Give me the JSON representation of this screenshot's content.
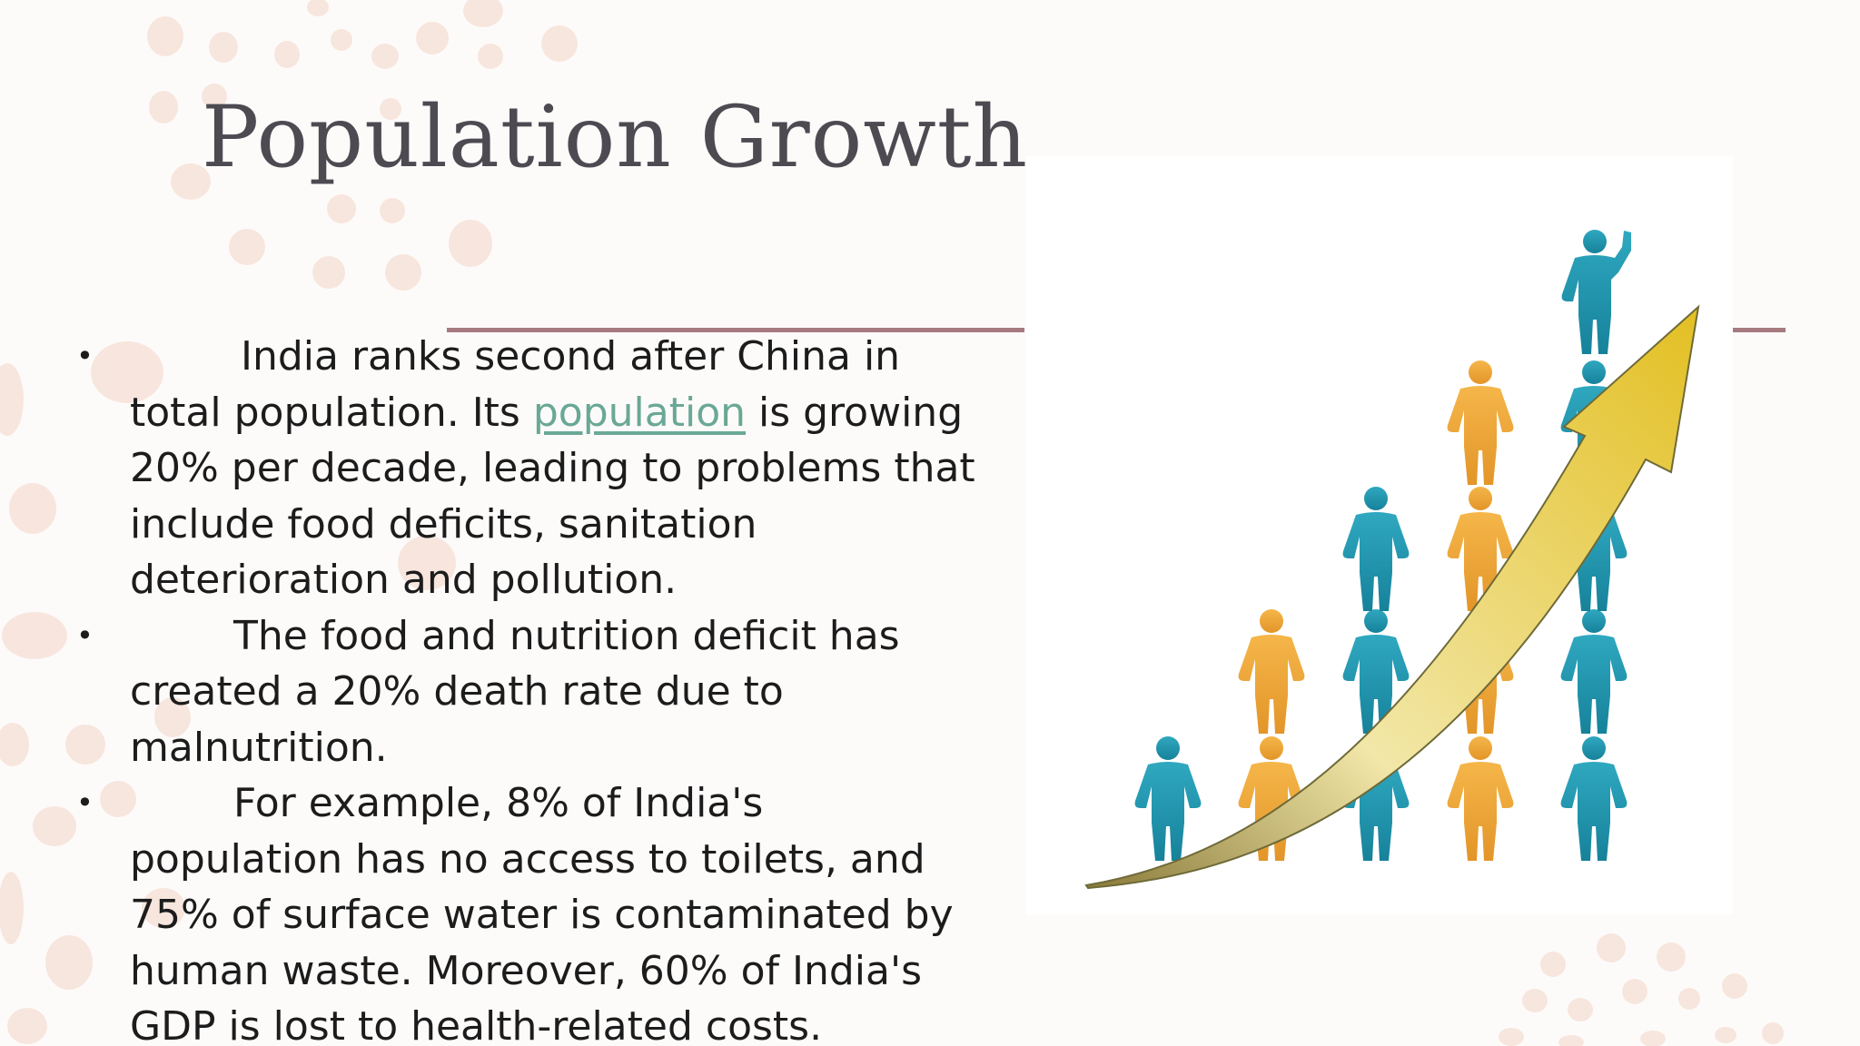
{
  "slide": {
    "title": "Population Growth",
    "bullets": [
      {
        "marker": "•",
        "text_before": "India ranks second after China in total population. Its ",
        "link_text": "population",
        "text_after": " is growing 20% per decade, leading to problems that include food deficits, sanitation deterioration and pollution."
      },
      {
        "marker": "•",
        "text": "The food and nutrition deficit has created a 20% death rate due to malnutrition."
      },
      {
        "marker": "•",
        "text": "For example, 8% of India's population has no access to toilets, and 75% of surface water is contaminated by human waste. Moreover, 60% of India's GDP is lost to health-related costs."
      }
    ]
  },
  "picture": {
    "icon": "population-growth-people-arrow-illustration"
  },
  "colors": {
    "background": "#fdfbfa",
    "title": "#4d4a52",
    "body_text": "#1c1c1c",
    "link": "#6aa896",
    "rule": "#a57b80",
    "decor_dots": "#f6dfd4",
    "figure_teal": "#2196ad",
    "figure_orange": "#f0a63a",
    "arrow_yellow": "#e8c634"
  }
}
